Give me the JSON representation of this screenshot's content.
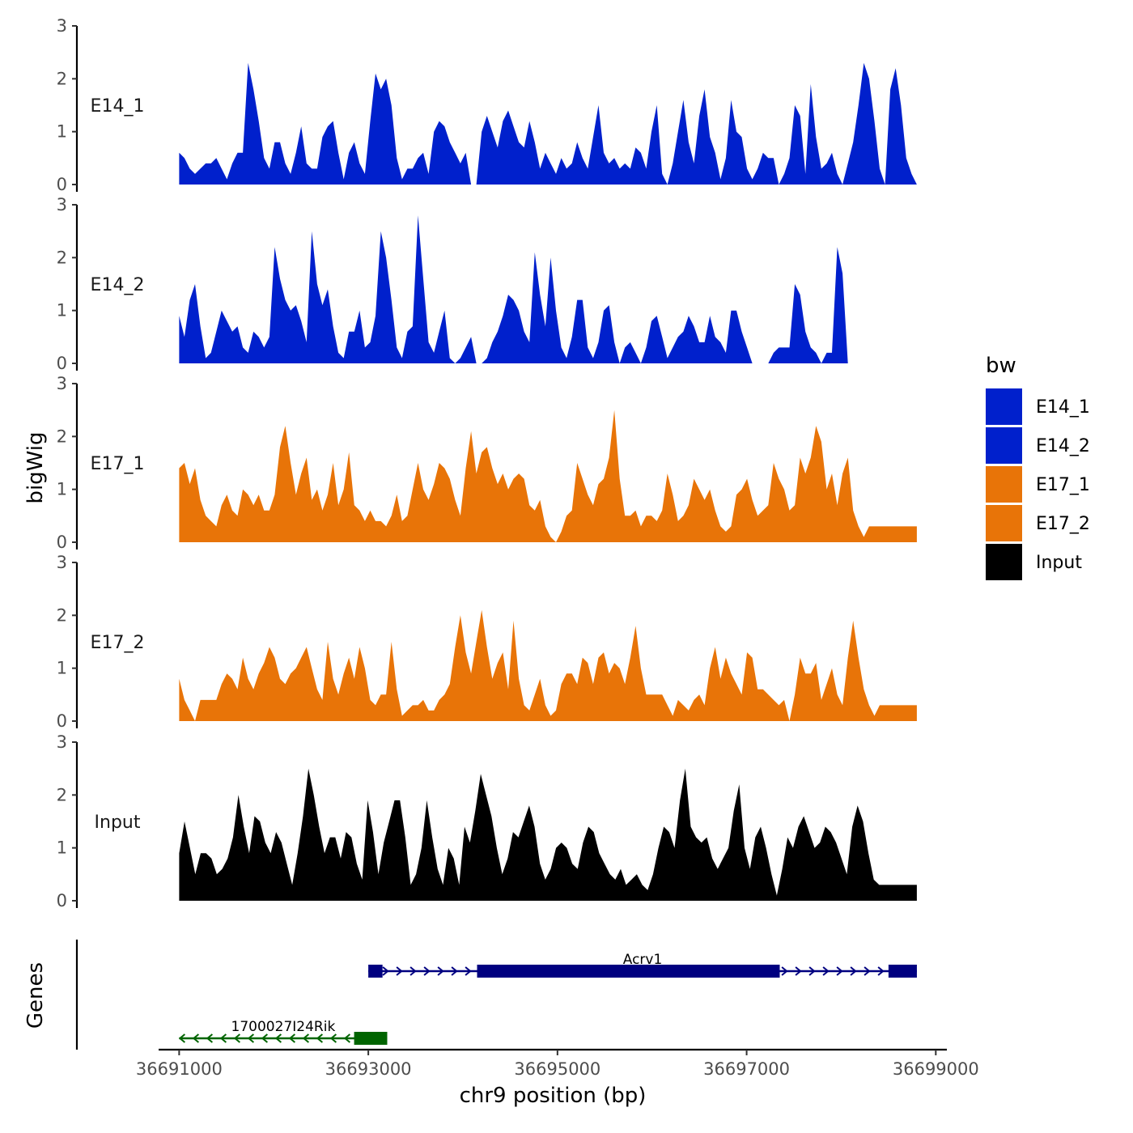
{
  "chart_data": {
    "type": "area",
    "ylabel": "bigWig",
    "xlabel": "chr9 position (bp)",
    "ylim": [
      0,
      3
    ],
    "yticks": [
      "0",
      "1",
      "2",
      "3"
    ],
    "xlim": [
      36690800,
      36699100
    ],
    "xticks": [
      {
        "value": 36691000,
        "label": "36691000"
      },
      {
        "value": 36693000,
        "label": "36693000"
      },
      {
        "value": 36695000,
        "label": "36695000"
      },
      {
        "value": 36697000,
        "label": "36697000"
      },
      {
        "value": 36699000,
        "label": "36699000"
      }
    ],
    "x_start": 36691000,
    "x_end": 36698800,
    "legend": {
      "title": "bw",
      "position": "right",
      "entries": [
        {
          "name": "E14_1",
          "color": "#0020CC"
        },
        {
          "name": "E14_2",
          "color": "#0020CC"
        },
        {
          "name": "E17_1",
          "color": "#E87408"
        },
        {
          "name": "E17_2",
          "color": "#E87408"
        },
        {
          "name": "Input",
          "color": "#000000"
        }
      ]
    },
    "tracks": [
      {
        "name": "E14_1",
        "color": "#0020CC",
        "values": [
          0.6,
          0.5,
          0.3,
          0.2,
          0.3,
          0.4,
          0.4,
          0.5,
          0.3,
          0.1,
          0.4,
          0.6,
          0.6,
          2.3,
          1.8,
          1.2,
          0.5,
          0.3,
          0.8,
          0.8,
          0.4,
          0.2,
          0.6,
          1.1,
          0.4,
          0.3,
          0.3,
          0.9,
          1.1,
          1.2,
          0.6,
          0.1,
          0.6,
          0.8,
          0.4,
          0.2,
          1.2,
          2.1,
          1.8,
          2.0,
          1.5,
          0.5,
          0.1,
          0.3,
          0.3,
          0.5,
          0.6,
          0.2,
          1.0,
          1.2,
          1.1,
          0.8,
          0.6,
          0.4,
          0.6,
          0.0,
          0.0,
          1.0,
          1.3,
          1.0,
          0.7,
          1.2,
          1.4,
          1.1,
          0.8,
          0.7,
          1.2,
          0.8,
          0.3,
          0.6,
          0.4,
          0.2,
          0.5,
          0.3,
          0.4,
          0.8,
          0.5,
          0.3,
          0.9,
          1.5,
          0.6,
          0.4,
          0.5,
          0.3,
          0.4,
          0.3,
          0.7,
          0.6,
          0.3,
          1.0,
          1.5,
          0.2,
          0.0,
          0.4,
          1.0,
          1.6,
          0.8,
          0.4,
          1.3,
          1.8,
          0.9,
          0.6,
          0.1,
          0.5,
          1.6,
          1.0,
          0.9,
          0.3,
          0.1,
          0.3,
          0.6,
          0.5,
          0.5,
          0.0,
          0.2,
          0.5,
          1.5,
          1.3,
          0.2,
          1.9,
          0.9,
          0.3,
          0.4,
          0.6,
          0.2,
          0.0,
          0.4,
          0.8,
          1.5,
          2.3,
          2.0,
          1.2,
          0.3,
          0.0,
          1.8,
          2.2,
          1.5,
          0.5,
          0.2,
          0.0
        ]
      },
      {
        "name": "E14_2",
        "color": "#0020CC",
        "values": [
          0.9,
          0.5,
          1.2,
          1.5,
          0.7,
          0.1,
          0.2,
          0.6,
          1.0,
          0.8,
          0.6,
          0.7,
          0.3,
          0.2,
          0.6,
          0.5,
          0.3,
          0.5,
          2.2,
          1.6,
          1.2,
          1.0,
          1.1,
          0.8,
          0.4,
          2.5,
          1.5,
          1.1,
          1.4,
          0.7,
          0.2,
          0.1,
          0.6,
          0.6,
          1.0,
          0.3,
          0.4,
          0.9,
          2.5,
          2.0,
          1.2,
          0.3,
          0.1,
          0.6,
          0.7,
          2.8,
          1.6,
          0.4,
          0.2,
          0.6,
          1.0,
          0.1,
          0.0,
          0.1,
          0.3,
          0.5,
          0.0,
          0.0,
          0.1,
          0.4,
          0.6,
          0.9,
          1.3,
          1.2,
          1.0,
          0.6,
          0.4,
          2.1,
          1.3,
          0.7,
          2.0,
          1.0,
          0.3,
          0.1,
          0.5,
          1.2,
          1.2,
          0.3,
          0.1,
          0.4,
          1.0,
          1.1,
          0.4,
          0.0,
          0.3,
          0.4,
          0.2,
          0.0,
          0.3,
          0.8,
          0.9,
          0.5,
          0.1,
          0.3,
          0.5,
          0.6,
          0.9,
          0.7,
          0.4,
          0.4,
          0.9,
          0.5,
          0.4,
          0.2,
          1.0,
          1.0,
          0.6,
          0.3,
          0.0,
          0.0,
          0.0,
          0.0,
          0.2,
          0.3,
          0.3,
          0.3,
          1.5,
          1.3,
          0.6,
          0.3,
          0.2,
          0.0,
          0.2,
          0.2,
          2.2,
          1.7,
          0.0,
          0.0,
          0.0,
          0.0,
          0.0,
          0.0,
          0.0,
          0.0,
          0.0,
          0.0,
          0.0,
          0.0,
          0.0,
          0.0
        ]
      },
      {
        "name": "E17_1",
        "color": "#E87408",
        "values": [
          1.4,
          1.5,
          1.1,
          1.4,
          0.8,
          0.5,
          0.4,
          0.3,
          0.7,
          0.9,
          0.6,
          0.5,
          1.0,
          0.9,
          0.7,
          0.9,
          0.6,
          0.6,
          0.9,
          1.8,
          2.2,
          1.5,
          0.9,
          1.3,
          1.6,
          0.8,
          1.0,
          0.6,
          0.9,
          1.5,
          0.7,
          1.0,
          1.7,
          0.7,
          0.6,
          0.4,
          0.6,
          0.4,
          0.4,
          0.3,
          0.5,
          0.9,
          0.4,
          0.5,
          1.0,
          1.5,
          1.0,
          0.8,
          1.1,
          1.5,
          1.4,
          1.2,
          0.8,
          0.5,
          1.4,
          2.1,
          1.3,
          1.7,
          1.8,
          1.4,
          1.1,
          1.3,
          1.0,
          1.2,
          1.3,
          1.2,
          0.7,
          0.6,
          0.8,
          0.3,
          0.1,
          0.0,
          0.2,
          0.5,
          0.6,
          1.5,
          1.2,
          0.9,
          0.7,
          1.1,
          1.2,
          1.6,
          2.5,
          1.2,
          0.5,
          0.5,
          0.6,
          0.3,
          0.5,
          0.5,
          0.4,
          0.6,
          1.3,
          0.9,
          0.4,
          0.5,
          0.7,
          1.2,
          1.0,
          0.8,
          1.0,
          0.6,
          0.3,
          0.2,
          0.3,
          0.9,
          1.0,
          1.2,
          0.8,
          0.5,
          0.6,
          0.7,
          1.5,
          1.2,
          1.0,
          0.6,
          0.7,
          1.6,
          1.3,
          1.6,
          2.2,
          1.9,
          1.0,
          1.3,
          0.7,
          1.3,
          1.6,
          0.6,
          0.3,
          0.1,
          0.3,
          0.3,
          0.3,
          0.3,
          0.3,
          0.3,
          0.3,
          0.3,
          0.3,
          0.3
        ]
      },
      {
        "name": "E17_2",
        "color": "#E87408",
        "values": [
          0.8,
          0.4,
          0.2,
          0.0,
          0.4,
          0.4,
          0.4,
          0.4,
          0.7,
          0.9,
          0.8,
          0.6,
          1.2,
          0.8,
          0.6,
          0.9,
          1.1,
          1.4,
          1.2,
          0.8,
          0.7,
          0.9,
          1.0,
          1.2,
          1.4,
          1.0,
          0.6,
          0.4,
          1.5,
          0.8,
          0.5,
          0.9,
          1.2,
          0.8,
          1.4,
          1.0,
          0.4,
          0.3,
          0.5,
          0.5,
          1.5,
          0.6,
          0.1,
          0.2,
          0.3,
          0.3,
          0.4,
          0.2,
          0.2,
          0.4,
          0.5,
          0.7,
          1.4,
          2.0,
          1.3,
          0.9,
          1.5,
          2.1,
          1.4,
          0.8,
          1.1,
          1.3,
          0.6,
          1.9,
          0.8,
          0.3,
          0.2,
          0.5,
          0.8,
          0.3,
          0.1,
          0.2,
          0.7,
          0.9,
          0.9,
          0.7,
          1.2,
          1.1,
          0.7,
          1.2,
          1.3,
          0.9,
          1.1,
          1.0,
          0.7,
          1.2,
          1.8,
          1.0,
          0.5,
          0.5,
          0.5,
          0.5,
          0.3,
          0.1,
          0.4,
          0.3,
          0.2,
          0.4,
          0.5,
          0.3,
          1.0,
          1.4,
          0.8,
          1.2,
          0.9,
          0.7,
          0.5,
          1.3,
          1.2,
          0.6,
          0.6,
          0.5,
          0.4,
          0.3,
          0.4,
          0.0,
          0.5,
          1.2,
          0.9,
          0.9,
          1.1,
          0.4,
          0.7,
          1.0,
          0.5,
          0.3,
          1.2,
          1.9,
          1.2,
          0.6,
          0.3,
          0.1,
          0.3,
          0.3,
          0.3,
          0.3,
          0.3,
          0.3,
          0.3,
          0.3
        ]
      },
      {
        "name": "Input",
        "color": "#000000",
        "values": [
          0.9,
          1.5,
          1.0,
          0.5,
          0.9,
          0.9,
          0.8,
          0.5,
          0.6,
          0.8,
          1.2,
          2.0,
          1.4,
          0.9,
          1.6,
          1.5,
          1.1,
          0.9,
          1.3,
          1.1,
          0.7,
          0.3,
          0.9,
          1.6,
          2.5,
          2.0,
          1.4,
          0.9,
          1.2,
          1.2,
          0.8,
          1.3,
          1.2,
          0.7,
          0.4,
          1.9,
          1.3,
          0.5,
          1.1,
          1.5,
          1.9,
          1.9,
          1.2,
          0.3,
          0.5,
          1.0,
          1.9,
          1.2,
          0.6,
          0.3,
          1.0,
          0.8,
          0.3,
          1.4,
          1.1,
          1.7,
          2.4,
          2.0,
          1.6,
          1.0,
          0.5,
          0.8,
          1.3,
          1.2,
          1.5,
          1.8,
          1.4,
          0.7,
          0.4,
          0.6,
          1.0,
          1.1,
          1.0,
          0.7,
          0.6,
          1.1,
          1.4,
          1.3,
          0.9,
          0.7,
          0.5,
          0.4,
          0.6,
          0.3,
          0.4,
          0.5,
          0.3,
          0.2,
          0.5,
          1.0,
          1.4,
          1.3,
          1.0,
          1.9,
          2.5,
          1.4,
          1.2,
          1.1,
          1.2,
          0.8,
          0.6,
          0.8,
          1.0,
          1.7,
          2.2,
          1.0,
          0.6,
          1.2,
          1.4,
          1.0,
          0.5,
          0.1,
          0.6,
          1.2,
          1.0,
          1.4,
          1.6,
          1.3,
          1.0,
          1.1,
          1.4,
          1.3,
          1.1,
          0.8,
          0.5,
          1.4,
          1.8,
          1.5,
          0.9,
          0.4,
          0.3,
          0.3,
          0.3,
          0.3,
          0.3,
          0.3,
          0.3,
          0.3
        ]
      }
    ],
    "genes_label": "Genes",
    "genes": [
      {
        "name": "Acrv1",
        "color": "#000080",
        "strand": "+",
        "start": 36693000,
        "end": 36698800,
        "exons": [
          [
            36693000,
            36693150
          ],
          [
            36694150,
            36697350
          ],
          [
            36698500,
            36698800
          ]
        ]
      },
      {
        "name": "1700027I24Rik",
        "color": "#006400",
        "strand": "-",
        "start": 36691000,
        "end": 36693200,
        "exons": [
          [
            36692850,
            36693200
          ]
        ]
      }
    ]
  }
}
